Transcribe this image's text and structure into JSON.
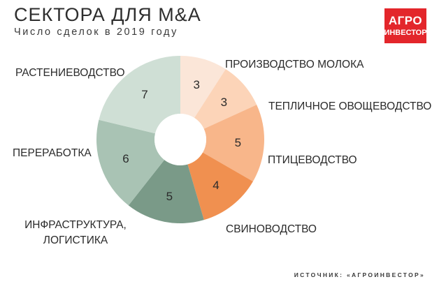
{
  "header": {
    "title": "СЕКТОРА ДЛЯ M&A",
    "subtitle": "Число сделок в 2019 году"
  },
  "logo": {
    "line1": "АГРО",
    "line2": "ИНВЕСТОР",
    "color": "#e3262b"
  },
  "footer": {
    "source": "ИСТОЧНИК: «АГРОИНВЕСТОР»"
  },
  "chart_data": {
    "type": "pie",
    "donut": true,
    "title": "СЕКТОРА ДЛЯ M&A",
    "subtitle": "Число сделок в 2019 году",
    "categories": [
      "ПРОИЗВОДСТВО МОЛОКА",
      "ТЕПЛИЧНОЕ ОВОЩЕВОДСТВО",
      "ПТИЦЕВОДСТВО",
      "СВИНОВОДСТВО",
      "ИНФРАСТРУКТУРА, ЛОГИСТИКА",
      "ПЕРЕРАБОТКА",
      "РАСТЕНИЕВОДСТВО"
    ],
    "label_lines": [
      [
        "ПРОИЗВОДСТВО МОЛОКА"
      ],
      [
        "ТЕПЛИЧНОЕ ОВОЩЕВОДСТВО"
      ],
      [
        "ПТИЦЕВОДСТВО"
      ],
      [
        "СВИНОВОДСТВО"
      ],
      [
        "ИНФРАСТРУКТУРА,",
        "ЛОГИСТИКА"
      ],
      [
        "ПЕРЕРАБОТКА"
      ],
      [
        "РАСТЕНИЕВОДСТВО"
      ]
    ],
    "values": [
      3,
      3,
      5,
      4,
      5,
      6,
      7
    ],
    "colors": [
      "#fbe6d8",
      "#fcd4b8",
      "#f8b68a",
      "#f09050",
      "#7a9a88",
      "#a9c3b4",
      "#cfdfd5"
    ]
  }
}
